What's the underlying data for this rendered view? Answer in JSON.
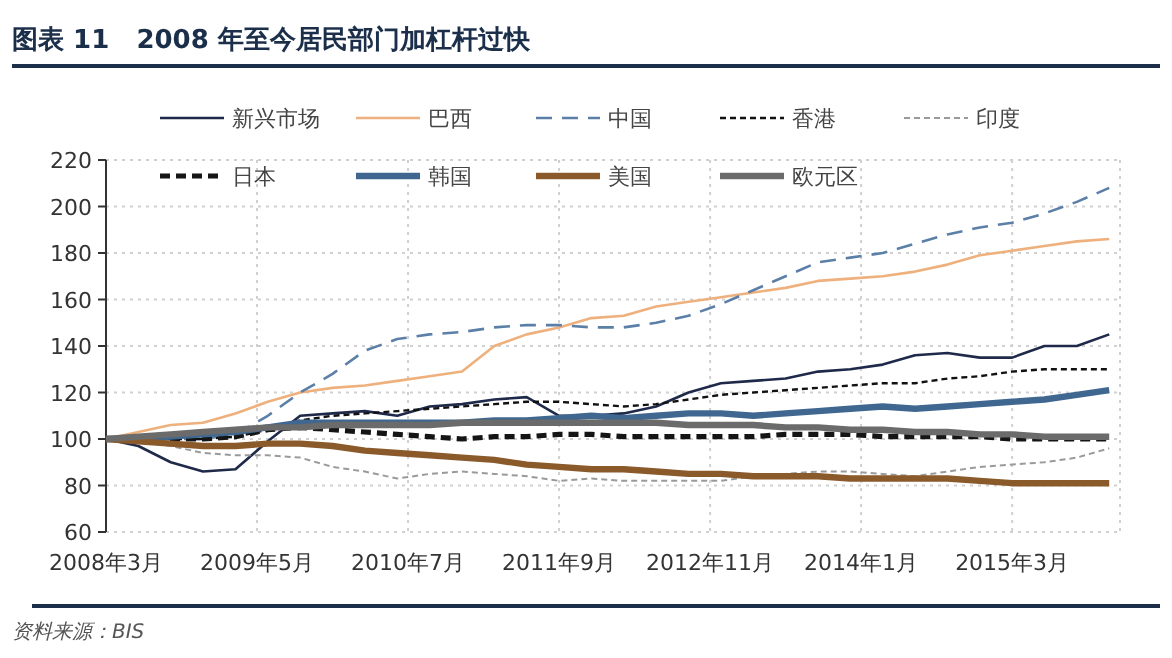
{
  "chart_data": {
    "type": "line",
    "title": "图表 11   2008 年至今居民部门加杠杆过快",
    "x": [
      "2008-03",
      "2008-06",
      "2008-09",
      "2008-12",
      "2009-03",
      "2009-06",
      "2009-09",
      "2009-12",
      "2010-03",
      "2010-06",
      "2010-09",
      "2010-12",
      "2011-03",
      "2011-06",
      "2011-09",
      "2011-12",
      "2012-03",
      "2012-06",
      "2012-09",
      "2012-12",
      "2013-03",
      "2013-06",
      "2013-09",
      "2013-12",
      "2014-03",
      "2014-06",
      "2014-09",
      "2014-12",
      "2015-03",
      "2015-06",
      "2015-09",
      "2015-12"
    ],
    "series": [
      {
        "name": "新兴市场",
        "color": "#1f2a4a",
        "line_style": "solid",
        "values": [
          100,
          97,
          90,
          86,
          87,
          99,
          110,
          111,
          112,
          110,
          114,
          115,
          117,
          118,
          110,
          110,
          111,
          114,
          120,
          124,
          125,
          126,
          129,
          130,
          132,
          136,
          137,
          135,
          135,
          140,
          140,
          145
        ]
      },
      {
        "name": "巴西",
        "color": "#eeb07c",
        "line_style": "solid",
        "values": [
          100,
          103,
          106,
          107,
          111,
          116,
          120,
          122,
          123,
          125,
          127,
          129,
          140,
          145,
          148,
          152,
          153,
          157,
          159,
          161,
          163,
          165,
          168,
          169,
          170,
          172,
          175,
          179,
          181,
          183,
          185,
          186
        ]
      },
      {
        "name": "中国",
        "color": "#5b7fa6",
        "line_style": "dashed",
        "values": [
          100,
          100,
          100,
          100,
          102,
          110,
          120,
          128,
          138,
          143,
          145,
          146,
          148,
          149,
          149,
          148,
          148,
          150,
          153,
          158,
          164,
          170,
          176,
          178,
          180,
          184,
          188,
          191,
          193,
          197,
          202,
          208
        ]
      },
      {
        "name": "香港",
        "color": "#111111",
        "line_style": "dashed",
        "values": [
          100,
          100,
          100,
          100,
          101,
          104,
          108,
          110,
          111,
          112,
          113,
          114,
          115,
          116,
          116,
          115,
          114,
          115,
          117,
          119,
          120,
          121,
          122,
          123,
          124,
          124,
          126,
          127,
          129,
          130,
          130,
          130
        ]
      },
      {
        "name": "印度",
        "color": "#9a9a9a",
        "line_style": "dashed",
        "values": [
          100,
          99,
          97,
          94,
          93,
          93,
          92,
          88,
          86,
          83,
          85,
          86,
          85,
          84,
          82,
          83,
          82,
          82,
          82,
          82,
          84,
          85,
          86,
          86,
          85,
          84,
          86,
          88,
          89,
          90,
          92,
          96
        ]
      },
      {
        "name": "日本",
        "color": "#151515",
        "line_style": "dashed",
        "values": [
          100,
          100,
          100,
          100,
          101,
          104,
          105,
          104,
          103,
          102,
          101,
          100,
          101,
          101,
          102,
          102,
          101,
          101,
          101,
          101,
          101,
          102,
          102,
          102,
          101,
          101,
          101,
          101,
          100,
          100,
          100,
          100
        ]
      },
      {
        "name": "韩国",
        "color": "#3f6790",
        "line_style": "solid",
        "values": [
          100,
          100,
          101,
          102,
          103,
          105,
          107,
          107,
          107,
          107,
          107,
          107,
          108,
          108,
          109,
          110,
          109,
          110,
          111,
          111,
          110,
          111,
          112,
          113,
          114,
          113,
          114,
          115,
          116,
          117,
          119,
          121
        ]
      },
      {
        "name": "美国",
        "color": "#8b5a2b",
        "line_style": "solid",
        "values": [
          100,
          99,
          98,
          97,
          97,
          98,
          98,
          97,
          95,
          94,
          93,
          92,
          91,
          89,
          88,
          87,
          87,
          86,
          85,
          85,
          84,
          84,
          84,
          83,
          83,
          83,
          83,
          82,
          81,
          81,
          81,
          81
        ]
      },
      {
        "name": "欧元区",
        "color": "#6b6b6b",
        "line_style": "solid",
        "values": [
          100,
          101,
          102,
          103,
          104,
          105,
          105,
          106,
          106,
          106,
          106,
          107,
          107,
          107,
          107,
          107,
          107,
          107,
          106,
          106,
          106,
          105,
          105,
          104,
          104,
          103,
          103,
          102,
          102,
          101,
          101,
          101
        ]
      }
    ],
    "xlim": [
      "2008-03",
      "2016-01"
    ],
    "xticks": [
      {
        "value": "2008-03",
        "label": "2008年3月"
      },
      {
        "value": "2009-05",
        "label": "2009年5月"
      },
      {
        "value": "2010-07",
        "label": "2010年7月"
      },
      {
        "value": "2011-09",
        "label": "2011年9月"
      },
      {
        "value": "2012-11",
        "label": "2012年11月"
      },
      {
        "value": "2014-01",
        "label": "2014年1月"
      },
      {
        "value": "2015-03",
        "label": "2015年3月"
      }
    ],
    "ylim": [
      60,
      220
    ],
    "yticks": [
      60,
      80,
      100,
      120,
      140,
      160,
      180,
      200,
      220
    ],
    "grid": true,
    "legend": "top",
    "marker": "none",
    "annotations": [
      "资料来源：BIS"
    ]
  }
}
